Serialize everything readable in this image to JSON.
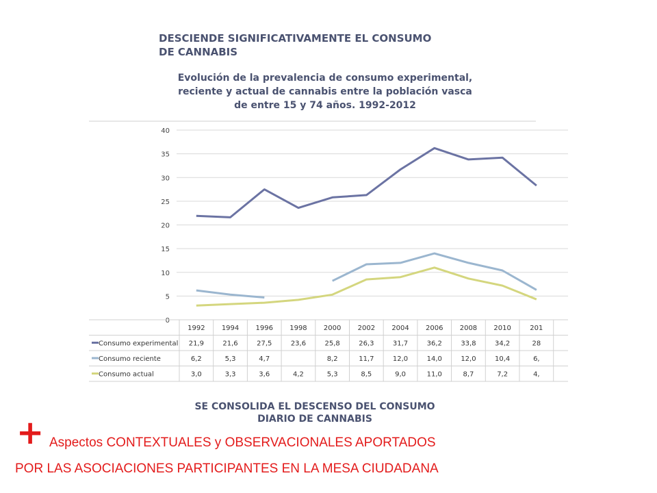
{
  "header": {
    "title_line1": "DESCIENDE SIGNIFICATIVAMENTE EL CONSUMO",
    "title_line2": "DE CANNABIS"
  },
  "chart_data": {
    "type": "line",
    "title_lines": [
      "Evolución de la prevalencia de consumo experimental,",
      "reciente y actual de cannabis entre la población vasca",
      "de entre 15 y 74 años. 1992-2012"
    ],
    "categories": [
      "1992",
      "1994",
      "1996",
      "1998",
      "2000",
      "2002",
      "2004",
      "2006",
      "2008",
      "2010",
      "201"
    ],
    "ylim": [
      0,
      40
    ],
    "yticks": [
      0,
      5,
      10,
      15,
      20,
      25,
      30,
      35,
      40
    ],
    "grid": true,
    "series": [
      {
        "name": "Consumo experimental",
        "color": "#6b73a3",
        "values": [
          21.9,
          21.6,
          27.5,
          23.6,
          25.8,
          26.3,
          31.7,
          36.2,
          33.8,
          34.2,
          28.3
        ],
        "labels": [
          "21,9",
          "21,6",
          "27,5",
          "23,6",
          "25,8",
          "26,3",
          "31,7",
          "36,2",
          "33,8",
          "34,2",
          "28"
        ]
      },
      {
        "name": "Consumo reciente",
        "color": "#9bb6cf",
        "values": [
          6.2,
          5.3,
          4.7,
          null,
          8.2,
          11.7,
          12.0,
          14.0,
          12.0,
          10.4,
          6.3
        ],
        "labels": [
          "6,2",
          "5,3",
          "4,7",
          "",
          "8,2",
          "11,7",
          "12,0",
          "14,0",
          "12,0",
          "10,4",
          "6,"
        ]
      },
      {
        "name": "Consumo actual",
        "color": "#d4d67e",
        "values": [
          3.0,
          3.3,
          3.6,
          4.2,
          5.3,
          8.5,
          9.0,
          11.0,
          8.7,
          7.2,
          4.3
        ],
        "labels": [
          "3,0",
          "3,3",
          "3,6",
          "4,2",
          "5,3",
          "8,5",
          "9,0",
          "11,0",
          "8,7",
          "7,2",
          "4,"
        ]
      }
    ]
  },
  "footer": {
    "subtitle_line1": "SE CONSOLIDA EL DESCENSO DEL CONSUMO",
    "subtitle_line2": "DIARIO DE CANNABIS",
    "plus_symbol": "+",
    "red_line1_prefix": "Aspectos ",
    "red_line1_main": "CONTEXTUALES y OBSERVACIONALES APORTADOS",
    "red_line2": "POR LAS ASOCIACIONES PARTICIPANTES EN LA MESA CIUDADANA"
  }
}
